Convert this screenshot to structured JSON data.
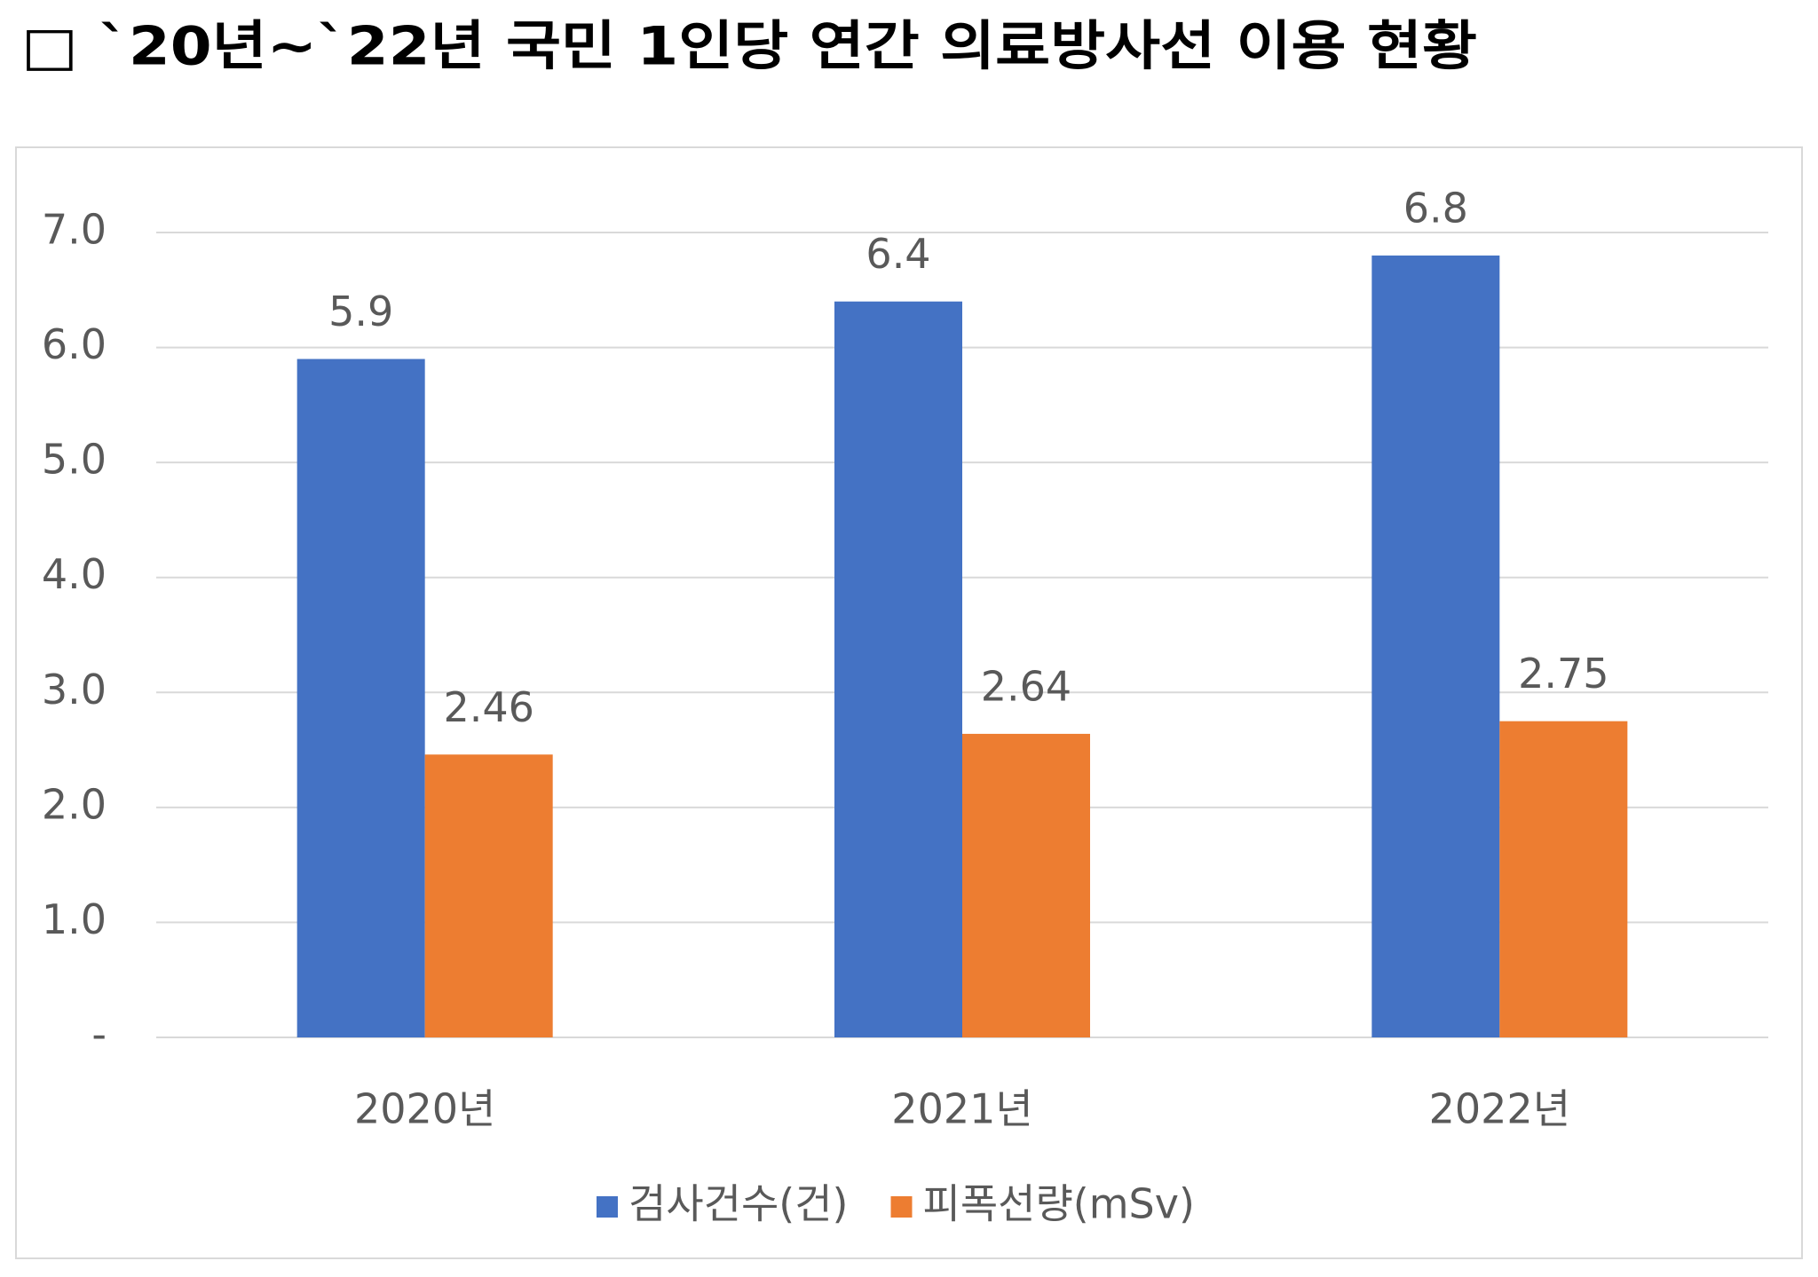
{
  "chart_data": {
    "type": "bar",
    "title": "□ `20년~`22년 국민 1인당 연간 의료방사선 이용 현황",
    "categories": [
      "2020년",
      "2021년",
      "2022년"
    ],
    "series": [
      {
        "name": "검사건수(건)",
        "color": "#4472c4",
        "values": [
          5.9,
          6.4,
          6.8
        ]
      },
      {
        "name": "피폭선량(mSv)",
        "color": "#ed7d31",
        "values": [
          2.46,
          2.64,
          2.75
        ]
      }
    ],
    "ylim": [
      0,
      7
    ],
    "yticks": [
      {
        "value": 0,
        "label": "-"
      },
      {
        "value": 1,
        "label": "1.0"
      },
      {
        "value": 2,
        "label": "2.0"
      },
      {
        "value": 3,
        "label": "3.0"
      },
      {
        "value": 4,
        "label": "4.0"
      },
      {
        "value": 5,
        "label": "5.0"
      },
      {
        "value": 6,
        "label": "6.0"
      },
      {
        "value": 7,
        "label": "7.0"
      }
    ],
    "grid": true,
    "legend": "bottom"
  }
}
